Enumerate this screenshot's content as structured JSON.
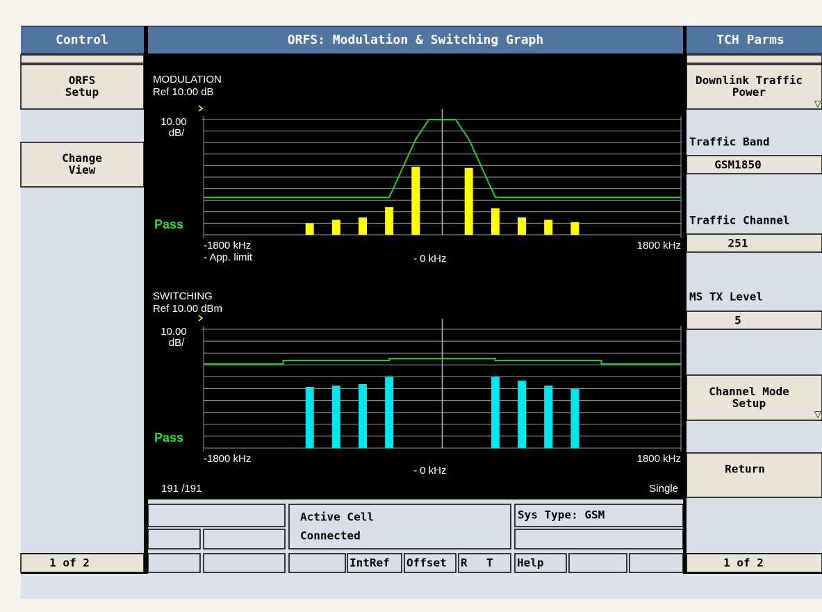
{
  "header": {
    "left": "Control",
    "center": "ORFS: Modulation & Switching Graph",
    "right": "TCH Parms"
  },
  "left_panel": {
    "buttons": [
      [
        "ORFS",
        "Setup"
      ],
      [
        "Change",
        "View"
      ]
    ],
    "page": "1 of 2"
  },
  "right_panel": {
    "top_button": [
      "Downlink Traffic",
      "Power"
    ],
    "fields": [
      {
        "label": "Traffic Band",
        "value": "GSM1850"
      },
      {
        "label": "Traffic Channel",
        "value": "251"
      },
      {
        "label": "MS TX Level",
        "value": "5"
      }
    ],
    "mode_button": [
      "Channel Mode",
      "Setup"
    ],
    "return_button": "Return",
    "page": "1 of 2"
  },
  "graphs": [
    {
      "type": "bar",
      "title": "MODULATION",
      "ref": "Ref 10.00 dB",
      "scale_unit": "dB/",
      "status": "Pass",
      "center_label": "- 0 kHz",
      "limit_legend": "- App. limit",
      "color": "#ffff00",
      "title_color": "#ffff00",
      "xlim": [
        -1800,
        1800
      ],
      "xticks": [
        {
          "value": -1800,
          "label": "-1800 kHz"
        },
        {
          "value": 1800,
          "label": "1800 kHz"
        }
      ],
      "ylim": [
        -90,
        10
      ],
      "yticks": [
        {
          "value": 10,
          "label": "10.00"
        }
      ],
      "x": [
        -1000,
        -800,
        -600,
        -400,
        -200,
        200,
        400,
        600,
        800,
        1000
      ],
      "values": [
        -80,
        -77,
        -75,
        -66,
        -31,
        -32,
        -67,
        -75,
        -77,
        -79
      ],
      "limit": {
        "x": [
          -1800,
          -400,
          -200,
          -100,
          100,
          200,
          400,
          1800
        ],
        "values": [
          -57.5,
          -57.5,
          -7,
          10,
          10,
          -7,
          -57.5,
          -57.5
        ]
      }
    },
    {
      "type": "bar",
      "title": "SWITCHING",
      "ref": "Ref 10.00 dBm",
      "scale_unit": "dB/",
      "status": "Pass",
      "center_label": "- 0 kHz",
      "color": "#00e5ee",
      "title_color": "#00e5ee",
      "xlim": [
        -1800,
        1800
      ],
      "xticks": [
        {
          "value": -1800,
          "label": "-1800 kHz"
        },
        {
          "value": 1800,
          "label": "1800 kHz"
        }
      ],
      "ylim": [
        -90,
        10
      ],
      "yticks": [
        {
          "value": 10,
          "label": "10.00"
        }
      ],
      "x": [
        -1000,
        -800,
        -600,
        -400,
        400,
        600,
        800,
        1000
      ],
      "values": [
        -38.5,
        -37.4,
        -36.2,
        -29.8,
        -29.8,
        -33.3,
        -37.4,
        -40.3
      ],
      "limit": {
        "x": [
          -1800,
          -1200,
          -1200,
          -400,
          -400,
          400,
          400,
          1200,
          1200,
          1800
        ],
        "values": [
          -19.2,
          -19.2,
          -16.3,
          -16.3,
          -14.6,
          -14.6,
          -16.3,
          -16.3,
          -19.2,
          -19.2
        ]
      }
    }
  ],
  "graph_footer": {
    "count": "191 /191",
    "mode": "Single"
  },
  "status": {
    "active_label": "Active Cell",
    "state": "Connected",
    "sys_type": "Sys Type: GSM",
    "keys": [
      "IntRef",
      "Offset",
      "R",
      "T",
      "Help"
    ]
  }
}
